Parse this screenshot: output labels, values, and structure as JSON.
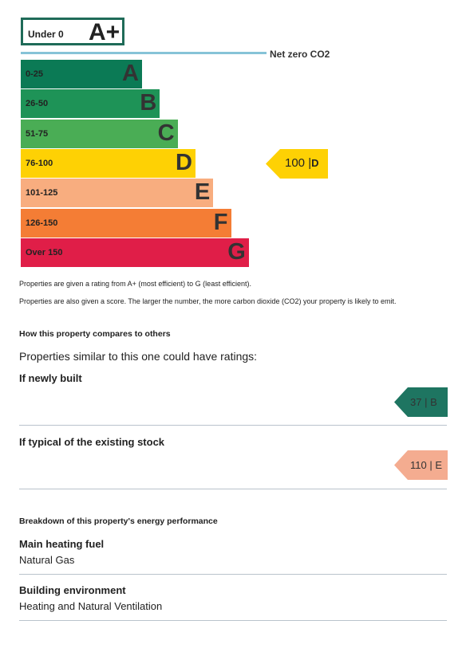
{
  "scale": {
    "top_band": {
      "range": "Under 0",
      "letter": "A+"
    },
    "net_zero_label": "Net zero CO2",
    "bands": [
      {
        "range": "0-25",
        "letter": "A",
        "color": "#0b7a55"
      },
      {
        "range": "26-50",
        "letter": "B",
        "color": "#1e9357"
      },
      {
        "range": "51-75",
        "letter": "C",
        "color": "#4aad55"
      },
      {
        "range": "76-100",
        "letter": "D",
        "color": "#fed104"
      },
      {
        "range": "101-125",
        "letter": "E",
        "color": "#f8ad7f"
      },
      {
        "range": "126-150",
        "letter": "F",
        "color": "#f47d35"
      },
      {
        "range": "Over 150",
        "letter": "G",
        "color": "#e01e48"
      }
    ],
    "current": {
      "score": "100",
      "letter": "D",
      "color": "#fed104"
    }
  },
  "notes": {
    "line1": "Properties are given a rating from A+ (most efficient) to G (least efficient).",
    "line2": "Properties are also given a score. The larger the number, the more carbon dioxide (CO2) your property is likely to emit."
  },
  "compare": {
    "heading": "How this property compares to others",
    "intro": "Properties similar to this one could have ratings:",
    "newly_built": {
      "label": "If newly built",
      "score": "37",
      "letter": "B",
      "color": "#1e7561"
    },
    "typical": {
      "label": "If typical of the existing stock",
      "score": "110",
      "letter": "E",
      "color": "#f4ac90"
    }
  },
  "breakdown": {
    "heading": "Breakdown of this property's energy performance",
    "items": [
      {
        "label": "Main heating fuel",
        "value": "Natural Gas"
      },
      {
        "label": "Building environment",
        "value": "Heating and Natural Ventilation"
      }
    ]
  }
}
